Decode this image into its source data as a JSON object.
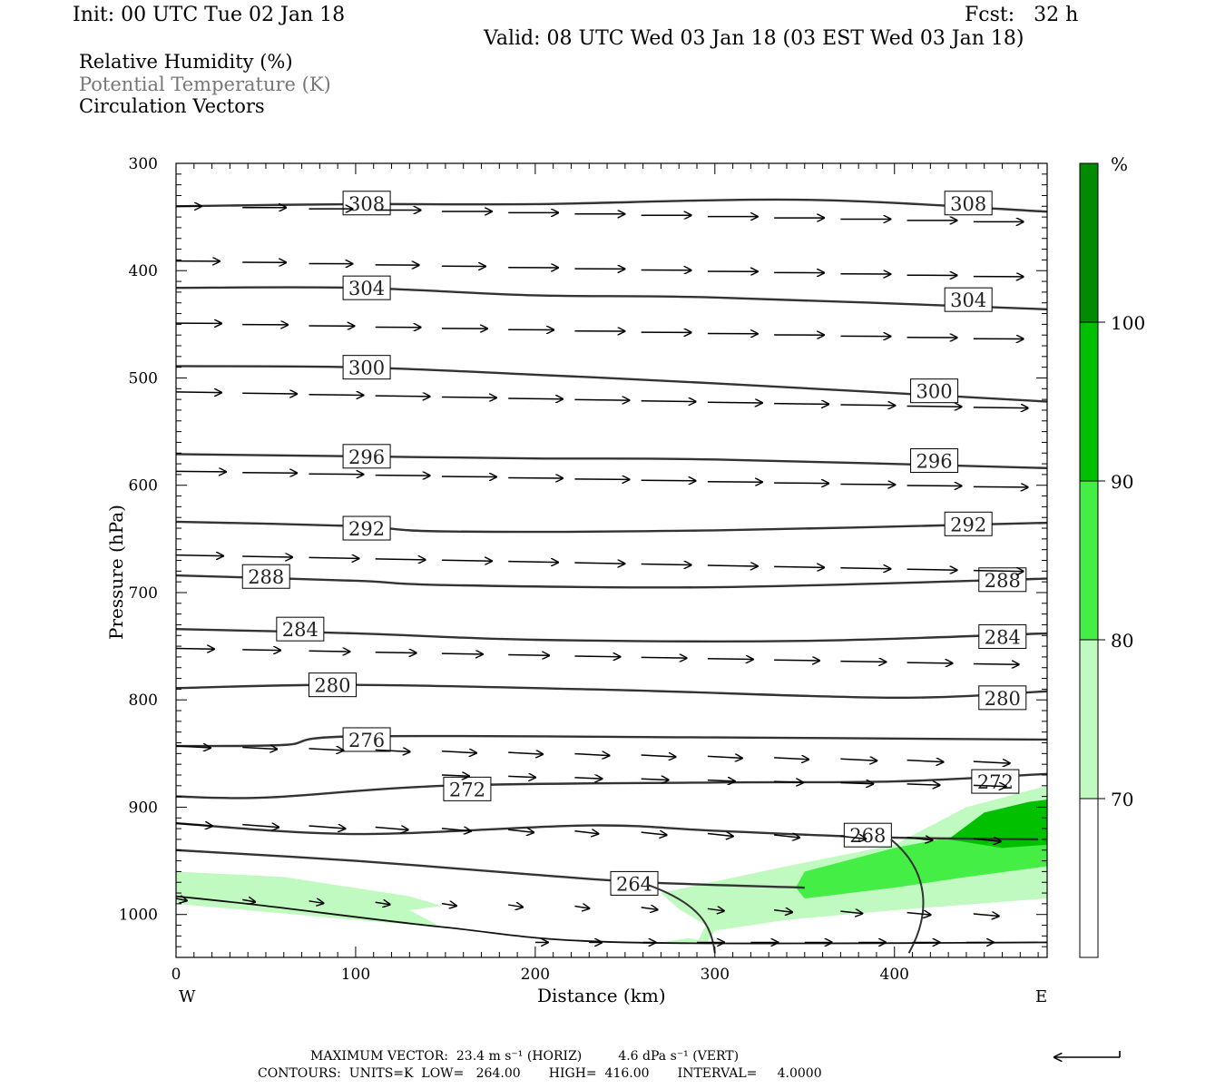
{
  "header": {
    "init": "Init: 00 UTC Tue 02 Jan 18",
    "fcst": "Fcst:   32 h",
    "valid": "Valid: 08 UTC Wed 03 Jan 18 (03 EST Wed 03 Jan 18)",
    "field1": "Relative Humidity (%)",
    "field2": "Potential Temperature (K)",
    "field3": "Circulation Vectors"
  },
  "footer": {
    "max_vector": "MAXIMUM VECTOR:  23.4 m s⁻¹ (HORIZ)         4.6 dPa s⁻¹ (VERT)",
    "contours": "CONTOURS:  UNITS=K  LOW=   264.00       HIGH=  416.00       INTERVAL=     4.0000"
  },
  "colors": {
    "rh70": "#c0fac0",
    "rh80": "#44ee44",
    "rh90": "#00c000",
    "rh100": "#008a00",
    "contour": "#333333"
  },
  "chart_data": {
    "type": "cross-section",
    "xlabel": "Distance (km)",
    "ylabel": "Pressure (hPa)",
    "xlim": [
      0,
      485
    ],
    "ylim": [
      1040,
      300
    ],
    "x_ticks": [
      "0",
      "100",
      "200",
      "300",
      "400"
    ],
    "y_ticks": [
      "300",
      "400",
      "500",
      "600",
      "700",
      "800",
      "900",
      "1000"
    ],
    "left_end_label": "W",
    "right_end_label": "E",
    "colorbar": {
      "unit": "%",
      "levels": [
        "70",
        "80",
        "90",
        "100"
      ],
      "colors": [
        "#c0fac0",
        "#44ee44",
        "#00c000",
        "#008a00"
      ]
    },
    "theta_contours": [
      {
        "label": "308",
        "points": [
          [
            0,
            340
          ],
          [
            100,
            338
          ],
          [
            200,
            338
          ],
          [
            350,
            334
          ],
          [
            485,
            345
          ]
        ],
        "label_pos": [
          [
            93,
            337
          ],
          [
            428,
            337
          ]
        ]
      },
      {
        "label": "304",
        "points": [
          [
            0,
            416
          ],
          [
            100,
            416
          ],
          [
            200,
            423
          ],
          [
            300,
            425
          ],
          [
            485,
            436
          ]
        ],
        "label_pos": [
          [
            93,
            416
          ],
          [
            428,
            427
          ]
        ]
      },
      {
        "label": "300",
        "points": [
          [
            0,
            489
          ],
          [
            100,
            490
          ],
          [
            200,
            497
          ],
          [
            300,
            505
          ],
          [
            485,
            522
          ]
        ],
        "label_pos": [
          [
            93,
            490
          ],
          [
            409,
            512
          ]
        ]
      },
      {
        "label": "296",
        "points": [
          [
            0,
            571
          ],
          [
            100,
            573
          ],
          [
            200,
            575
          ],
          [
            300,
            576
          ],
          [
            485,
            584
          ]
        ],
        "label_pos": [
          [
            93,
            573
          ],
          [
            409,
            577
          ]
        ]
      },
      {
        "label": "292",
        "points": [
          [
            0,
            634
          ],
          [
            100,
            638
          ],
          [
            150,
            643
          ],
          [
            300,
            642
          ],
          [
            485,
            635
          ]
        ],
        "label_pos": [
          [
            93,
            640
          ],
          [
            428,
            636
          ]
        ]
      },
      {
        "label": "288",
        "points": [
          [
            0,
            684
          ],
          [
            100,
            689
          ],
          [
            150,
            693
          ],
          [
            300,
            695
          ],
          [
            485,
            687
          ]
        ],
        "label_pos": [
          [
            37,
            685
          ],
          [
            447,
            688
          ]
        ]
      },
      {
        "label": "284",
        "points": [
          [
            0,
            734
          ],
          [
            100,
            738
          ],
          [
            200,
            744
          ],
          [
            350,
            745
          ],
          [
            485,
            738
          ]
        ],
        "label_pos": [
          [
            56,
            734
          ],
          [
            447,
            741
          ]
        ]
      },
      {
        "label": "280",
        "points": [
          [
            0,
            789
          ],
          [
            100,
            786
          ],
          [
            250,
            791
          ],
          [
            400,
            798
          ],
          [
            485,
            792
          ]
        ],
        "label_pos": [
          [
            74,
            786
          ],
          [
            447,
            798
          ]
        ]
      },
      {
        "label": "276",
        "points": [
          [
            0,
            843
          ],
          [
            60,
            842
          ],
          [
            100,
            834
          ],
          [
            300,
            835
          ],
          [
            485,
            837
          ]
        ],
        "label_pos": [
          [
            93,
            837
          ],
          [
            0,
            0
          ]
        ]
      },
      {
        "label": "272",
        "points": [
          [
            0,
            890
          ],
          [
            50,
            891
          ],
          [
            150,
            880
          ],
          [
            300,
            877
          ],
          [
            400,
            876
          ],
          [
            485,
            869
          ]
        ],
        "label_pos": [
          [
            149,
            883
          ],
          [
            443,
            876
          ]
        ]
      },
      {
        "label": "268",
        "points": [
          [
            0,
            915
          ],
          [
            100,
            925
          ],
          [
            230,
            917
          ],
          [
            300,
            922
          ],
          [
            390,
            928
          ],
          [
            480,
            930
          ]
        ],
        "label_pos": [
          [
            372,
            926
          ],
          [
            0,
            0
          ]
        ]
      },
      {
        "label": "264",
        "points": [
          [
            0,
            940
          ],
          [
            100,
            950
          ],
          [
            200,
            963
          ],
          [
            260,
            970
          ],
          [
            350,
            975
          ]
        ],
        "label_pos": [
          [
            242,
            971
          ],
          [
            0,
            0
          ]
        ]
      }
    ],
    "ground_pressure": [
      [
        0,
        983
      ],
      [
        50,
        992
      ],
      [
        150,
        1012
      ],
      [
        250,
        1026
      ],
      [
        485,
        1026
      ]
    ],
    "vector_max_horiz": "23.4 m s-1",
    "vector_max_vert": "4.6 dPa s-1"
  }
}
